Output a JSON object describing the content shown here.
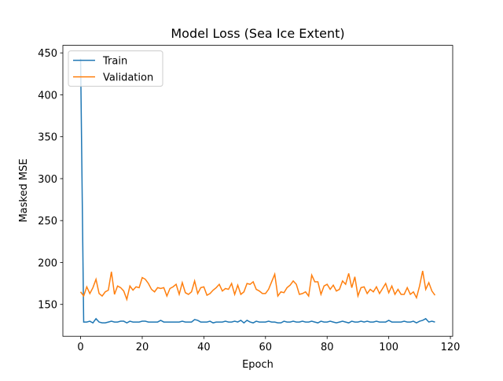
{
  "chart_data": {
    "type": "line",
    "title": "Model Loss (Sea Ice Extent)",
    "x_label": "Epoch",
    "y_label": "Masked MSE",
    "x": [
      0,
      1,
      2,
      3,
      4,
      5,
      6,
      7,
      8,
      9,
      10,
      11,
      12,
      13,
      14,
      15,
      16,
      17,
      18,
      19,
      20,
      21,
      22,
      23,
      24,
      25,
      26,
      27,
      28,
      29,
      30,
      31,
      32,
      33,
      34,
      35,
      36,
      37,
      38,
      39,
      40,
      41,
      42,
      43,
      44,
      45,
      46,
      47,
      48,
      49,
      50,
      51,
      52,
      53,
      54,
      55,
      56,
      57,
      58,
      59,
      60,
      61,
      62,
      63,
      64,
      65,
      66,
      67,
      68,
      69,
      70,
      71,
      72,
      73,
      74,
      75,
      76,
      77,
      78,
      79,
      80,
      81,
      82,
      83,
      84,
      85,
      86,
      87,
      88,
      89,
      90,
      91,
      92,
      93,
      94,
      95,
      96,
      97,
      98,
      99,
      100,
      101,
      102,
      103,
      104,
      105,
      106,
      107,
      108,
      109,
      110,
      111,
      112,
      113,
      114,
      115
    ],
    "series": [
      {
        "name": "Train",
        "color": "#1f77b4",
        "values": [
          443,
          129,
          129,
          130,
          128,
          133,
          129,
          128,
          128,
          129,
          130,
          129,
          129,
          130,
          130,
          128,
          130,
          129,
          129,
          129,
          130,
          130,
          129,
          129,
          129,
          129,
          131,
          129,
          129,
          129,
          129,
          129,
          129,
          130,
          129,
          129,
          129,
          132,
          131,
          129,
          129,
          129,
          130,
          128,
          129,
          129,
          129,
          130,
          129,
          129,
          130,
          129,
          131,
          128,
          131,
          129,
          128,
          130,
          129,
          129,
          129,
          130,
          129,
          129,
          128,
          128,
          130,
          129,
          129,
          130,
          129,
          129,
          130,
          129,
          129,
          130,
          129,
          128,
          130,
          129,
          129,
          130,
          129,
          128,
          129,
          130,
          129,
          128,
          130,
          129,
          129,
          130,
          129,
          130,
          129,
          129,
          130,
          129,
          129,
          129,
          131,
          129,
          129,
          129,
          129,
          130,
          129,
          129,
          130,
          128,
          130,
          131,
          133,
          129,
          130,
          129
        ]
      },
      {
        "name": "Validation",
        "color": "#ff7f0e",
        "values": [
          165,
          160,
          171,
          163,
          170,
          180,
          163,
          160,
          165,
          167,
          189,
          162,
          172,
          170,
          166,
          156,
          172,
          167,
          171,
          170,
          182,
          180,
          175,
          168,
          165,
          170,
          169,
          170,
          160,
          169,
          171,
          174,
          162,
          176,
          164,
          162,
          165,
          178,
          163,
          170,
          171,
          161,
          163,
          167,
          170,
          174,
          166,
          169,
          168,
          175,
          162,
          173,
          162,
          165,
          175,
          174,
          177,
          168,
          166,
          163,
          163,
          168,
          177,
          186,
          160,
          165,
          164,
          170,
          173,
          178,
          174,
          162,
          163,
          165,
          160,
          185,
          177,
          177,
          162,
          172,
          174,
          168,
          173,
          166,
          168,
          178,
          174,
          187,
          170,
          183,
          160,
          170,
          171,
          163,
          168,
          165,
          171,
          163,
          169,
          175,
          164,
          172,
          162,
          168,
          162,
          162,
          170,
          162,
          165,
          158,
          172,
          190,
          168,
          176,
          166,
          161
        ]
      }
    ],
    "xlim": [
      -5.75,
      120.75
    ],
    "xticks": [
      0,
      20,
      40,
      60,
      80,
      100,
      120
    ],
    "ylim": [
      112,
      459
    ],
    "yticks": [
      150,
      200,
      250,
      300,
      350,
      400,
      450
    ],
    "legend": "upper left"
  }
}
